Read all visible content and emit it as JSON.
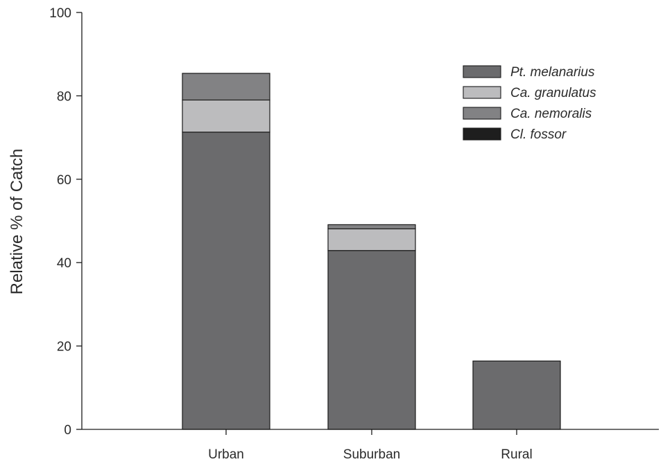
{
  "chart_data": {
    "type": "bar",
    "stacked": true,
    "title": "",
    "xlabel": "",
    "ylabel": "Relative % of Catch",
    "ylim": [
      0,
      100
    ],
    "yticks": [
      0,
      20,
      40,
      60,
      80,
      100
    ],
    "categories": [
      "Urban",
      "Suburban",
      "Rural"
    ],
    "series": [
      {
        "name": "Pt. melanarius",
        "color": "#6b6b6d",
        "values": [
          71.3,
          42.9,
          16.4
        ]
      },
      {
        "name": "Ca. granulatus",
        "color": "#bcbcbe",
        "values": [
          7.7,
          5.2,
          0
        ]
      },
      {
        "name": "Ca. nemoralis",
        "color": "#828284",
        "values": [
          6.4,
          1.0,
          0
        ]
      },
      {
        "name": "Cl. fossor",
        "color": "#1e1e1e",
        "values": [
          0,
          0,
          0
        ]
      }
    ],
    "legend_position": "top-right",
    "grid": false
  }
}
